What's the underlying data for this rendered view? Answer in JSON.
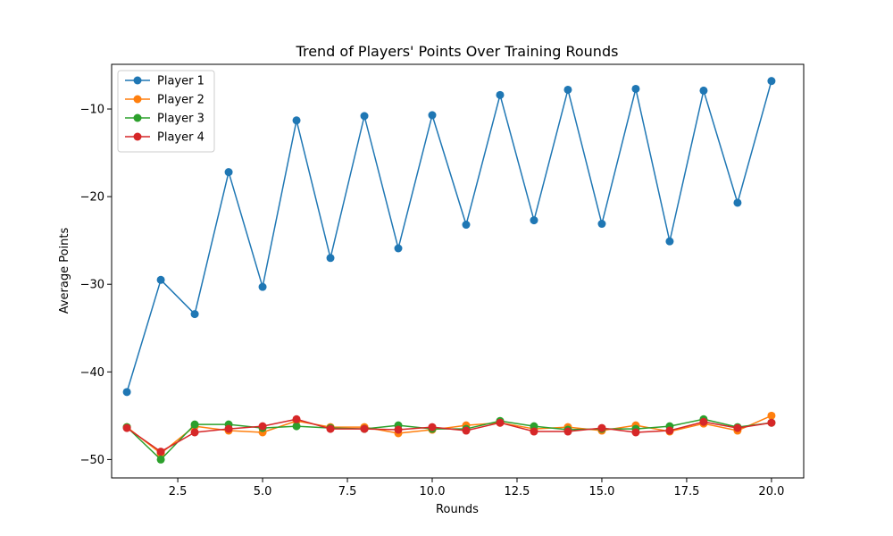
{
  "chart_data": {
    "type": "line",
    "title": "Trend of Players' Points Over Training Rounds",
    "xlabel": "Rounds",
    "ylabel": "Average Points",
    "xlim": [
      0.55,
      20.95
    ],
    "ylim": [
      -52.1,
      -4.9
    ],
    "xticks": [
      2.5,
      5.0,
      7.5,
      10.0,
      12.5,
      15.0,
      17.5,
      20.0
    ],
    "xtick_labels": [
      "2.5",
      "5.0",
      "7.5",
      "10.0",
      "12.5",
      "15.0",
      "17.5",
      "20.0"
    ],
    "yticks": [
      -50,
      -40,
      -30,
      -20,
      -10
    ],
    "ytick_labels": [
      "−50",
      "−40",
      "−30",
      "−20",
      "−10"
    ],
    "grid": false,
    "legend_position": "top-left",
    "x": [
      1,
      2,
      3,
      4,
      5,
      6,
      7,
      8,
      9,
      10,
      11,
      12,
      13,
      14,
      15,
      16,
      17,
      18,
      19,
      20
    ],
    "series": [
      {
        "name": "Player 1",
        "color": "#1f77b4",
        "values": [
          -42.3,
          -29.5,
          -33.4,
          -17.2,
          -30.3,
          -11.3,
          -27.0,
          -10.8,
          -25.9,
          -10.7,
          -23.2,
          -8.4,
          -22.7,
          -7.8,
          -23.1,
          -7.7,
          -25.1,
          -7.9,
          -20.7,
          -6.8
        ]
      },
      {
        "name": "Player 2",
        "color": "#ff7f0e",
        "values": [
          -46.3,
          -49.3,
          -46.2,
          -46.7,
          -46.9,
          -45.6,
          -46.3,
          -46.3,
          -47.0,
          -46.6,
          -46.1,
          -45.8,
          -46.5,
          -46.3,
          -46.7,
          -46.1,
          -46.8,
          -45.9,
          -46.7,
          -45.0
        ]
      },
      {
        "name": "Player 3",
        "color": "#2ca02c",
        "values": [
          -46.3,
          -50.0,
          -46.0,
          -46.0,
          -46.4,
          -46.2,
          -46.4,
          -46.5,
          -46.1,
          -46.5,
          -46.5,
          -45.6,
          -46.2,
          -46.6,
          -46.5,
          -46.5,
          -46.2,
          -45.4,
          -46.3,
          -45.8
        ]
      },
      {
        "name": "Player 4",
        "color": "#d62728",
        "values": [
          -46.4,
          -49.1,
          -46.9,
          -46.5,
          -46.2,
          -45.4,
          -46.5,
          -46.5,
          -46.6,
          -46.3,
          -46.7,
          -45.8,
          -46.8,
          -46.8,
          -46.4,
          -46.9,
          -46.7,
          -45.7,
          -46.4,
          -45.8
        ]
      }
    ]
  }
}
